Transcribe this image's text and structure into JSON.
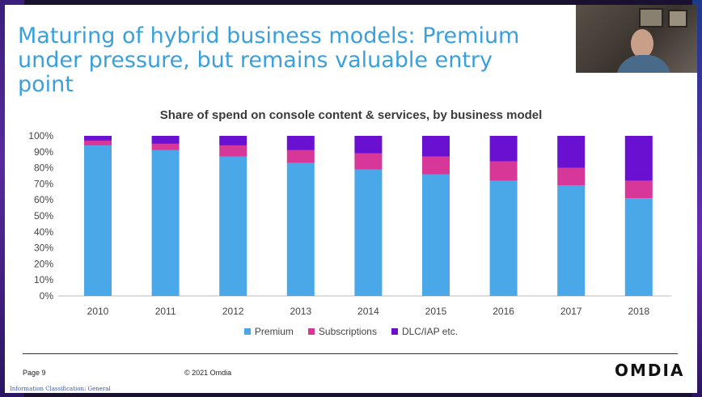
{
  "slide": {
    "title_line1": "Maturing of hybrid business models: Premium",
    "title_line2": "under pressure, but remains valuable entry point",
    "page": "Page 9",
    "copyright": "© 2021 Omdia",
    "classification": "Information Classification: General",
    "logo": "OMDIA"
  },
  "colors": {
    "premium": "#4aa8e8",
    "subscriptions": "#d8379a",
    "dlc": "#6a10d0",
    "title": "#3aa0dc"
  },
  "chart_data": {
    "type": "bar",
    "stacked": true,
    "title": "Share of spend on console content & services, by business model",
    "categories": [
      "2010",
      "2011",
      "2012",
      "2013",
      "2014",
      "2015",
      "2016",
      "2017",
      "2018"
    ],
    "series": [
      {
        "name": "Premium",
        "values": [
          94,
          91,
          87,
          83,
          79,
          76,
          72,
          69,
          61
        ]
      },
      {
        "name": "Subscriptions",
        "values": [
          3,
          4,
          7,
          8,
          10,
          11,
          12,
          11,
          11
        ]
      },
      {
        "name": "DLC/IAP etc.",
        "values": [
          3,
          5,
          6,
          9,
          11,
          13,
          16,
          20,
          28
        ]
      }
    ],
    "yticks": [
      "0%",
      "10%",
      "20%",
      "30%",
      "40%",
      "50%",
      "60%",
      "70%",
      "80%",
      "90%",
      "100%"
    ],
    "ylim": [
      0,
      100
    ],
    "legend_position": "bottom",
    "grid": false
  }
}
